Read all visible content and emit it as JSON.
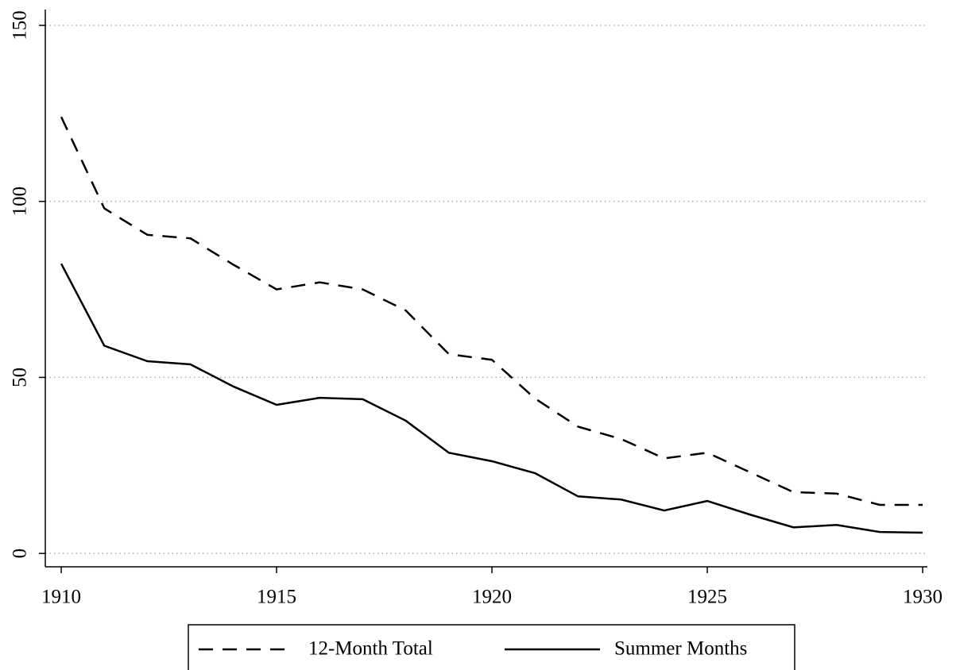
{
  "chart_data": {
    "type": "line",
    "x": [
      1910,
      1911,
      1912,
      1913,
      1914,
      1915,
      1916,
      1917,
      1918,
      1919,
      1920,
      1921,
      1922,
      1923,
      1924,
      1925,
      1926,
      1927,
      1928,
      1929,
      1930
    ],
    "series": [
      {
        "name": "12-Month Total",
        "color": "#000000",
        "style": "dashed",
        "values": [
          124,
          98,
          90.5,
          89.5,
          82,
          75,
          77,
          75,
          69,
          56.6,
          55,
          44,
          36,
          32.5,
          27,
          28.6,
          23,
          17.4,
          17,
          13.8,
          13.8
        ]
      },
      {
        "name": "Summer Months",
        "color": "#000000",
        "style": "solid",
        "values": [
          82.3,
          59,
          54.6,
          53.7,
          47.4,
          42.2,
          44.2,
          43.8,
          37.7,
          28.6,
          26.2,
          22.8,
          16.2,
          15.3,
          12.2,
          14.9,
          11,
          7.4,
          8.1,
          6.1,
          5.9
        ]
      }
    ],
    "xlim": [
      1909.63,
      1930.11
    ],
    "xticks": [
      1910,
      1915,
      1920,
      1925,
      1930
    ],
    "ylim": [
      -3.8,
      154.5
    ],
    "yticks": [
      0,
      50,
      100,
      150
    ],
    "grid": true,
    "legend": "bottom"
  }
}
